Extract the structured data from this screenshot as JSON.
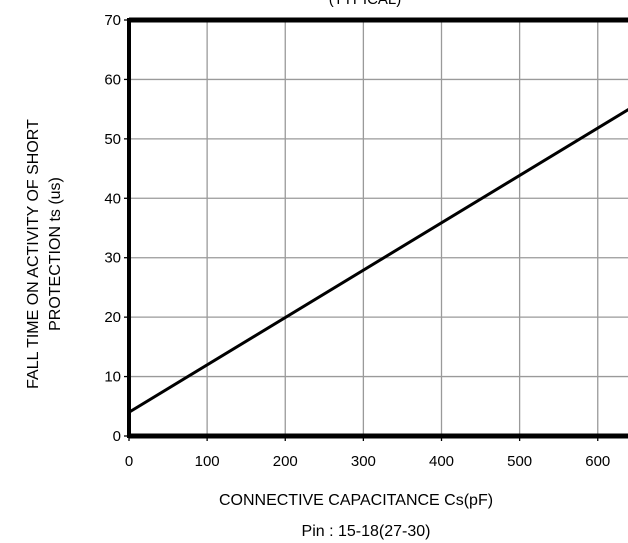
{
  "chart_data": {
    "type": "line",
    "title": "(TYPICAL)",
    "xlabel": "CONNECTIVE  CAPACITANCE  Cs(pF)",
    "xlabel_sub": "Pin : 15-18(27-30)",
    "ylabel_line1": "FALL TIME ON ACTIVITY OF SHORT",
    "ylabel_line2": "PROTECTION ts (us)",
    "xlim": [
      0,
      640
    ],
    "ylim": [
      0,
      70
    ],
    "x_ticks": [
      0,
      100,
      200,
      300,
      400,
      500,
      600
    ],
    "y_ticks": [
      0,
      10,
      20,
      30,
      40,
      50,
      60,
      70
    ],
    "grid": true,
    "series": [
      {
        "x": [
          0,
          640
        ],
        "y": [
          4,
          55
        ]
      }
    ]
  },
  "colors": {
    "line": "#000000",
    "grid": "#9a9a9a",
    "frame": "#000000"
  }
}
